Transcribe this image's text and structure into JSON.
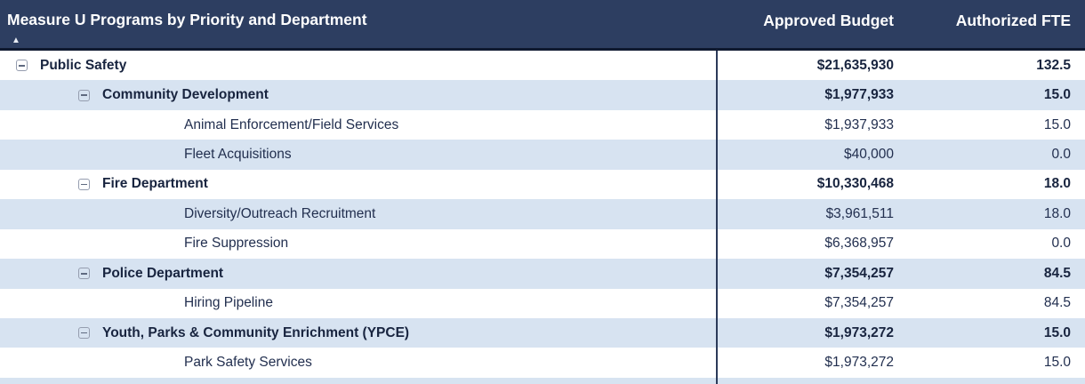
{
  "table": {
    "title": "Measure U Programs by Priority and Department",
    "sort_indicator": "▲",
    "columns": {
      "budget": "Approved Budget",
      "fte": "Authorized FTE"
    },
    "colors": {
      "header_bg": "#2D3E61",
      "header_text": "#FFFFFF",
      "header_border": "#0F1930",
      "alt_row_bg": "#D7E3F1",
      "row_text": "#222F4F",
      "column_divider": "#2B3A59"
    },
    "rows": [
      {
        "label": "Public Safety",
        "level": 1,
        "expandable": true,
        "bold": true,
        "budget": "$21,635,930",
        "fte": "132.5"
      },
      {
        "label": "Community Development",
        "level": 2,
        "expandable": true,
        "bold": true,
        "budget": "$1,977,933",
        "fte": "15.0"
      },
      {
        "label": "Animal Enforcement/Field Services",
        "level": 3,
        "expandable": false,
        "bold": false,
        "budget": "$1,937,933",
        "fte": "15.0"
      },
      {
        "label": "Fleet Acquisitions",
        "level": 3,
        "expandable": false,
        "bold": false,
        "budget": "$40,000",
        "fte": "0.0"
      },
      {
        "label": "Fire Department",
        "level": 2,
        "expandable": true,
        "bold": true,
        "budget": "$10,330,468",
        "fte": "18.0"
      },
      {
        "label": "Diversity/Outreach Recruitment",
        "level": 3,
        "expandable": false,
        "bold": false,
        "budget": "$3,961,511",
        "fte": "18.0"
      },
      {
        "label": "Fire Suppression",
        "level": 3,
        "expandable": false,
        "bold": false,
        "budget": "$6,368,957",
        "fte": "0.0"
      },
      {
        "label": "Police Department",
        "level": 2,
        "expandable": true,
        "bold": true,
        "budget": "$7,354,257",
        "fte": "84.5"
      },
      {
        "label": "Hiring Pipeline",
        "level": 3,
        "expandable": false,
        "bold": false,
        "budget": "$7,354,257",
        "fte": "84.5"
      },
      {
        "label": "Youth, Parks & Community Enrichment (YPCE)",
        "level": 2,
        "expandable": true,
        "bold": true,
        "budget": "$1,973,272",
        "fte": "15.0"
      },
      {
        "label": "Park Safety Services",
        "level": 3,
        "expandable": false,
        "bold": false,
        "budget": "$1,973,272",
        "fte": "15.0"
      }
    ]
  },
  "chart_data": {
    "type": "table",
    "title": "Measure U Programs by Priority and Department",
    "columns": [
      "Measure U Programs by Priority and Department",
      "Approved Budget",
      "Authorized FTE"
    ],
    "rows": [
      [
        "Public Safety",
        21635930,
        132.5
      ],
      [
        "Community Development",
        1977933,
        15.0
      ],
      [
        "Animal Enforcement/Field Services",
        1937933,
        15.0
      ],
      [
        "Fleet Acquisitions",
        40000,
        0.0
      ],
      [
        "Fire Department",
        10330468,
        18.0
      ],
      [
        "Diversity/Outreach Recruitment",
        3961511,
        18.0
      ],
      [
        "Fire Suppression",
        6368957,
        0.0
      ],
      [
        "Police Department",
        7354257,
        84.5
      ],
      [
        "Hiring Pipeline",
        7354257,
        84.5
      ],
      [
        "Youth, Parks & Community Enrichment (YPCE)",
        1973272,
        15.0
      ],
      [
        "Park Safety Services",
        1973272,
        15.0
      ]
    ],
    "layout_hints": {
      "hierarchy_levels": true,
      "sorted_by_first_column_ascending": true,
      "value_columns_right_aligned": true
    }
  }
}
